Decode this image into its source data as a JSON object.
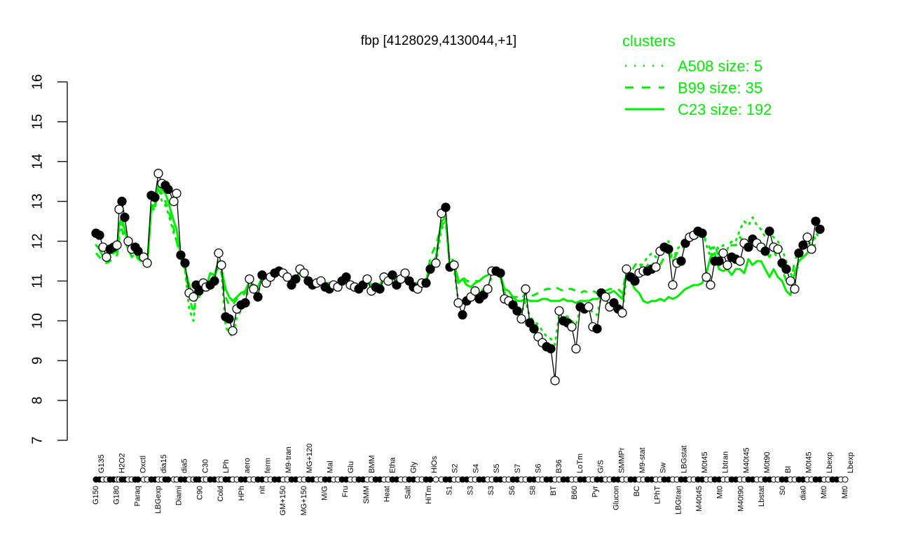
{
  "chart_data": {
    "type": "line",
    "title": "fbp [4128029,4130044,+1]",
    "xlabel": "",
    "ylabel": "",
    "ylim": [
      7,
      16
    ],
    "yticks": [
      7,
      8,
      9,
      10,
      11,
      12,
      13,
      14,
      15,
      16
    ],
    "grid": false,
    "legend": {
      "title": "clusters",
      "position": "top-right",
      "entries": [
        {
          "label": "A508 size: 5",
          "style": "dotted",
          "color": "#00ee00"
        },
        {
          "label": "B99 size: 35",
          "style": "dashed",
          "color": "#00ee00"
        },
        {
          "label": "C23 size: 192",
          "style": "solid",
          "color": "#00ee00"
        }
      ]
    },
    "categories_top": [
      "G135",
      "H2O2",
      "Oxctl",
      "dia15",
      "dia5",
      "C30",
      "LPh",
      "aero",
      "ferm",
      "M9-tran",
      "MG+120",
      "Mal",
      "Glu",
      "BMM",
      "Etha",
      "Gly",
      "HiOs",
      "S2",
      "S4",
      "S5",
      "S7",
      "S6",
      "B36",
      "LoTm",
      "G/S",
      "SMMPr",
      "M9-stat",
      "Sw",
      "LBGstat",
      "M0t45",
      "Lbtran",
      "M40t45",
      "M0t90",
      "BI",
      "M0t45",
      "Lbexp",
      "Lbexp"
    ],
    "categories_bottom": [
      "G150",
      "G180",
      "Paraq",
      "LBGexp",
      "Diami",
      "C90",
      "Cold",
      "HPh",
      "nit",
      "GM+150",
      "MG+150",
      "M/G",
      "Fru",
      "SMM",
      "Heat",
      "Salt",
      "HiTm",
      "S1",
      "S3",
      "S3",
      "S6",
      "S8",
      "BT",
      "B60",
      "Pyr",
      "Glucon",
      "BC",
      "LPhT",
      "LBGtran",
      "M40t45",
      "Mt0",
      "M40t90",
      "Lbstat",
      "S0",
      "dia0",
      "Mt0",
      "Mt0"
    ],
    "x": [
      137,
      142,
      147,
      152,
      157,
      162,
      167,
      170,
      174,
      178,
      183,
      188,
      193,
      197,
      205,
      210,
      216,
      221,
      226,
      231,
      236,
      240,
      248,
      252,
      258,
      264,
      270,
      276,
      280,
      284,
      290,
      294,
      300,
      306,
      312,
      316,
      322,
      327,
      332,
      338,
      344,
      350,
      356,
      362,
      368,
      374,
      380,
      386,
      392,
      398,
      404,
      410,
      416,
      422,
      428,
      434,
      440,
      446,
      452,
      458,
      464,
      470,
      476,
      482,
      488,
      494,
      500,
      506,
      512,
      518,
      524,
      530,
      536,
      542,
      548,
      554,
      560,
      566,
      572,
      578,
      584,
      590,
      596,
      602,
      608,
      614,
      622,
      630,
      636,
      642,
      648,
      654,
      660,
      666,
      672,
      678,
      684,
      690,
      696,
      702,
      708,
      714,
      720,
      726,
      732,
      738,
      744,
      750,
      756,
      762,
      768,
      774,
      780,
      786,
      792,
      798,
      804,
      810,
      816,
      822,
      828,
      834,
      840,
      846,
      852,
      858,
      864,
      870,
      876,
      882,
      888,
      894,
      900,
      906,
      912,
      918,
      924,
      930,
      936,
      942,
      948,
      954,
      960,
      966,
      972,
      978,
      984,
      990,
      996,
      1002,
      1008,
      1014,
      1020,
      1026,
      1032,
      1038,
      1044,
      1050,
      1056,
      1062,
      1068,
      1074,
      1080,
      1086,
      1092,
      1098,
      1104,
      1110,
      1116,
      1122,
      1128,
      1134,
      1140,
      1146,
      1152,
      1158,
      1164,
      1170,
      1176,
      1182,
      1188,
      1194,
      1200,
      1206
    ],
    "series": [
      {
        "name": "fbp expression",
        "color": "#000000",
        "values": [
          12.2,
          12.15,
          11.85,
          11.6,
          11.8,
          11.85,
          11.9,
          12.8,
          13.0,
          12.6,
          12.0,
          11.8,
          11.85,
          11.75,
          11.6,
          11.45,
          13.15,
          13.1,
          13.7,
          13.45,
          13.4,
          13.3,
          13.0,
          13.2,
          11.65,
          11.45,
          10.7,
          10.6,
          10.9,
          10.75,
          10.95,
          10.85,
          10.9,
          11.0,
          11.7,
          11.4,
          10.1,
          10.05,
          9.75,
          10.3,
          10.4,
          10.45,
          11.05,
          10.8,
          10.6,
          11.15,
          10.95,
          11.1,
          11.2,
          11.25,
          11.2,
          11.1,
          10.9,
          11.05,
          11.3,
          11.2,
          11.0,
          10.9,
          10.95,
          11.0,
          10.85,
          10.8,
          10.9,
          10.85,
          11.0,
          11.1,
          10.9,
          10.85,
          10.8,
          10.9,
          11.05,
          10.75,
          10.85,
          10.8,
          11.1,
          11.0,
          11.15,
          10.9,
          11.05,
          11.2,
          11.0,
          10.85,
          10.8,
          10.95,
          10.95,
          11.3,
          11.45,
          12.7,
          12.85,
          11.35,
          11.4,
          10.45,
          10.15,
          10.5,
          10.6,
          10.75,
          10.55,
          10.65,
          10.8,
          11.25,
          11.25,
          11.2,
          10.55,
          10.5,
          10.4,
          10.25,
          10.05,
          10.8,
          9.95,
          9.8,
          9.6,
          9.45,
          9.35,
          9.3,
          8.5,
          10.25,
          10.0,
          9.95,
          9.85,
          9.3,
          10.35,
          10.3,
          10.35,
          9.85,
          9.8,
          10.7,
          10.6,
          10.35,
          10.45,
          10.3,
          10.2,
          11.3,
          11.1,
          11.0,
          11.2,
          11.25,
          11.25,
          11.3,
          11.35,
          11.75,
          11.85,
          11.8,
          10.9,
          11.45,
          11.5,
          11.95,
          12.1,
          12.15,
          12.25,
          12.2,
          11.1,
          10.9,
          11.5,
          11.5,
          11.7,
          11.4,
          11.6,
          11.55,
          11.5,
          11.95,
          11.85,
          12.05,
          11.95,
          11.85,
          11.75,
          12.25,
          11.85,
          11.8,
          11.45,
          11.3,
          11.0,
          10.8,
          11.7,
          11.9,
          12.1,
          11.8,
          12.5,
          12.3
        ]
      },
      {
        "name": "C23 size: 192",
        "color": "#00ee00",
        "style": "solid",
        "values": [
          11.9,
          11.8,
          11.6,
          11.6,
          11.7,
          11.7,
          11.75,
          12.4,
          12.6,
          12.3,
          11.9,
          11.75,
          11.7,
          11.6,
          11.55,
          11.4,
          12.9,
          12.9,
          13.4,
          13.3,
          13.2,
          13.0,
          12.5,
          12.3,
          11.6,
          11.3,
          10.9,
          10.6,
          10.8,
          10.75,
          10.9,
          10.85,
          11.2,
          11.15,
          11.5,
          11.3,
          10.8,
          10.6,
          10.5,
          10.6,
          10.7,
          10.75,
          11.0,
          10.9,
          10.85,
          11.1,
          11.0,
          11.1,
          11.15,
          11.2,
          11.2,
          11.1,
          11.0,
          11.05,
          11.2,
          11.2,
          11.05,
          10.95,
          10.95,
          11.0,
          10.95,
          10.95,
          10.95,
          10.9,
          11.0,
          11.05,
          10.95,
          10.9,
          10.9,
          10.95,
          11.05,
          10.9,
          10.9,
          10.9,
          11.1,
          11.05,
          11.1,
          11.0,
          11.1,
          11.15,
          11.05,
          10.95,
          10.95,
          11.0,
          11.0,
          11.4,
          11.6,
          12.5,
          12.6,
          11.3,
          11.5,
          10.95,
          11.05,
          10.9,
          10.85,
          10.95,
          11.0,
          11.1,
          11.15,
          11.2,
          11.2,
          11.15,
          10.8,
          10.75,
          10.6,
          10.5,
          10.5,
          10.55,
          10.5,
          10.5,
          10.5,
          10.55,
          10.55,
          10.5,
          10.5,
          10.5,
          10.55,
          10.5,
          10.5,
          10.45,
          10.5,
          10.5,
          10.5,
          10.55,
          10.55,
          10.6,
          10.65,
          10.7,
          10.75,
          10.65,
          10.55,
          11.2,
          11.0,
          10.8,
          10.7,
          10.5,
          10.45,
          10.5,
          10.5,
          10.55,
          10.5,
          10.6,
          10.55,
          10.6,
          10.7,
          10.8,
          10.85,
          10.9,
          10.9,
          10.95,
          11.2,
          11.6,
          11.7,
          11.3,
          11.25,
          11.3,
          11.15,
          11.3,
          11.3,
          11.2,
          11.55,
          11.4,
          11.5,
          11.5,
          11.3,
          11.1,
          11.3,
          11.1,
          11.0,
          10.75,
          10.65,
          11.2,
          11.5,
          11.6,
          11.7,
          11.9,
          11.9
        ]
      },
      {
        "name": "B99 size: 35",
        "color": "#00ee00",
        "style": "dashed",
        "values": [
          11.7,
          11.6,
          11.5,
          11.45,
          11.5,
          11.6,
          11.65,
          12.1,
          12.3,
          12.0,
          11.8,
          11.6,
          11.7,
          11.55,
          11.5,
          11.4,
          12.8,
          12.8,
          13.3,
          13.2,
          13.0,
          12.8,
          12.3,
          12.0,
          11.6,
          11.3,
          10.6,
          10.2,
          10.6,
          10.6,
          10.8,
          10.85,
          11.0,
          11.15,
          11.3,
          11.2,
          10.6,
          10.4,
          10.4,
          10.55,
          10.6,
          10.7,
          10.9,
          10.85,
          10.8,
          11.05,
          11.0,
          11.1,
          11.15,
          11.15,
          11.15,
          11.05,
          10.95,
          11.0,
          11.15,
          11.1,
          11.0,
          10.9,
          10.9,
          10.95,
          10.9,
          10.85,
          10.9,
          10.85,
          10.95,
          11.0,
          10.9,
          10.85,
          10.85,
          10.9,
          11.0,
          10.85,
          10.85,
          10.85,
          11.05,
          11.0,
          11.1,
          10.95,
          11.05,
          11.1,
          11.0,
          10.9,
          10.9,
          10.95,
          10.95,
          11.6,
          11.9,
          12.4,
          12.5,
          11.4,
          11.6,
          11.0,
          11.1,
          11.0,
          11.0,
          11.0,
          11.0,
          11.1,
          11.15,
          11.2,
          11.2,
          11.1,
          10.7,
          10.6,
          10.6,
          10.6,
          10.55,
          10.7,
          10.6,
          10.65,
          10.7,
          10.75,
          10.8,
          10.8,
          10.85,
          10.8,
          10.75,
          10.8,
          10.8,
          10.75,
          10.7,
          10.75,
          10.7,
          10.75,
          10.7,
          10.75,
          10.75,
          10.8,
          10.8,
          10.8,
          10.7,
          11.3,
          11.2,
          11.4,
          11.5,
          11.2,
          11.4,
          11.5,
          11.3,
          11.4,
          11.6,
          11.7,
          11.5,
          11.7,
          11.8,
          11.9,
          12.0,
          12.1,
          12.1,
          12.2,
          12.0,
          11.8,
          11.9,
          11.6,
          11.6,
          11.8,
          11.9,
          11.9,
          12.1,
          12.0,
          12.0,
          12.1,
          12.0,
          11.95,
          11.8,
          11.6,
          11.8,
          11.5,
          11.3,
          11.0,
          10.9,
          11.5,
          11.8,
          11.9,
          12.0,
          12.0,
          12.1
        ]
      },
      {
        "name": "A508 size: 5",
        "color": "#00ee00",
        "style": "dotted",
        "values": [
          11.9,
          11.8,
          11.6,
          11.6,
          11.7,
          11.75,
          11.8,
          12.2,
          12.5,
          12.2,
          11.85,
          11.7,
          11.7,
          11.55,
          11.45,
          11.3,
          12.9,
          12.8,
          13.4,
          13.0,
          12.9,
          12.7,
          12.2,
          12.0,
          11.55,
          11.25,
          10.3,
          10.0,
          10.7,
          10.6,
          10.85,
          10.8,
          10.95,
          11.05,
          11.4,
          11.2,
          9.85,
          9.7,
          9.6,
          10.1,
          10.25,
          10.4,
          10.95,
          10.8,
          10.7,
          11.05,
          10.95,
          11.05,
          11.1,
          11.15,
          11.15,
          11.05,
          10.9,
          11.0,
          11.2,
          11.15,
          11.0,
          10.9,
          10.9,
          10.95,
          10.85,
          10.8,
          10.85,
          10.8,
          10.95,
          11.05,
          10.9,
          10.8,
          10.8,
          10.85,
          11.0,
          10.8,
          10.8,
          10.8,
          11.05,
          11.0,
          11.1,
          10.9,
          11.05,
          11.15,
          11.0,
          10.85,
          10.8,
          10.9,
          10.95,
          11.3,
          11.45,
          12.3,
          12.5,
          11.35,
          11.3,
          10.5,
          10.55,
          10.6,
          10.65,
          10.75,
          10.7,
          10.8,
          10.85,
          11.1,
          11.2,
          11.15,
          10.6,
          10.55,
          10.45,
          10.3,
          10.2,
          10.5,
          10.1,
          10.0,
          9.9,
          9.75,
          9.6,
          9.55,
          9.4,
          10.2,
          10.2,
          10.1,
          10.0,
          9.9,
          10.3,
          10.3,
          10.35,
          10.2,
          10.15,
          10.6,
          10.5,
          10.3,
          10.4,
          10.3,
          10.2,
          11.1,
          11.0,
          11.2,
          11.3,
          11.45,
          11.6,
          11.7,
          11.6,
          11.75,
          11.85,
          12.0,
          11.5,
          11.8,
          11.9,
          12.0,
          12.1,
          12.2,
          12.3,
          12.3,
          11.9,
          11.6,
          11.9,
          11.8,
          11.9,
          11.8,
          12.0,
          12.0,
          12.3,
          12.5,
          12.4,
          12.6,
          12.4,
          12.3,
          12.1,
          12.2,
          12.1,
          12.0,
          11.8,
          11.5,
          11.2,
          11.0,
          11.5,
          11.8,
          11.9,
          12.0,
          12.2,
          12.1
        ]
      }
    ]
  },
  "axis": {
    "y_tick_labels": [
      "7",
      "8",
      "9",
      "10",
      "11",
      "12",
      "13",
      "14",
      "15",
      "16"
    ]
  }
}
